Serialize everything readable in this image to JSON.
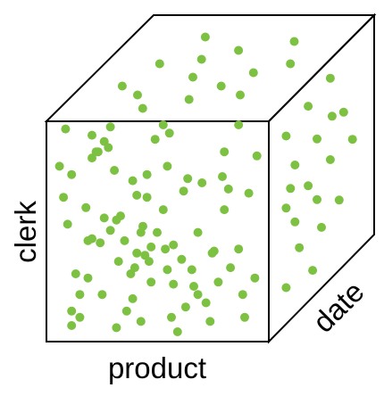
{
  "diagram": {
    "axes": {
      "x_label": "product",
      "y_label": "clerk",
      "z_label": "date"
    },
    "style": {
      "edge_color": "#000000",
      "dot_color": "#7dc142"
    },
    "points": [
      {
        "a": 0.05,
        "b": 0.02
      },
      {
        "a": 0.27,
        "b": 0.01
      },
      {
        "a": 0.53,
        "b": 0.0
      },
      {
        "a": 0.9,
        "b": 0.0
      },
      {
        "a": 0.18,
        "b": 0.05
      },
      {
        "a": 0.24,
        "b": 0.08
      },
      {
        "a": 0.26,
        "b": 0.11
      },
      {
        "a": 0.2,
        "b": 0.13
      },
      {
        "a": 0.02,
        "b": 0.2
      },
      {
        "a": 0.18,
        "b": 0.16
      },
      {
        "a": 0.08,
        "b": 0.24
      },
      {
        "a": 0.29,
        "b": 0.22
      },
      {
        "a": 0.38,
        "b": 0.27
      },
      {
        "a": 0.55,
        "b": 0.2
      },
      {
        "a": 0.65,
        "b": 0.26
      },
      {
        "a": 0.49,
        "b": 0.07
      },
      {
        "a": 0.45,
        "b": 0.35
      },
      {
        "a": 0.72,
        "b": 0.28
      },
      {
        "a": 0.85,
        "b": 0.31
      },
      {
        "a": 0.95,
        "b": 0.33
      },
      {
        "a": 0.15,
        "b": 0.4
      },
      {
        "a": 0.06,
        "b": 0.48
      },
      {
        "a": 0.24,
        "b": 0.45
      },
      {
        "a": 0.3,
        "b": 0.46
      },
      {
        "a": 0.22,
        "b": 0.57
      },
      {
        "a": 0.34,
        "b": 0.56
      },
      {
        "a": 0.4,
        "b": 0.62
      },
      {
        "a": 0.31,
        "b": 0.66
      },
      {
        "a": 0.5,
        "b": 0.52
      },
      {
        "a": 0.58,
        "b": 0.58
      },
      {
        "a": 0.62,
        "b": 0.65
      },
      {
        "a": 0.7,
        "b": 0.52
      },
      {
        "a": 0.78,
        "b": 0.61
      },
      {
        "a": 0.86,
        "b": 0.69
      },
      {
        "a": 0.98,
        "b": 0.74
      },
      {
        "a": 0.8,
        "b": 0.76
      },
      {
        "a": 0.1,
        "b": 0.72
      },
      {
        "a": 0.16,
        "b": 0.74
      },
      {
        "a": 0.12,
        "b": 0.82
      },
      {
        "a": 0.23,
        "b": 0.82
      },
      {
        "a": 0.38,
        "b": 0.84
      },
      {
        "a": 0.47,
        "b": 0.76
      },
      {
        "a": 0.55,
        "b": 0.7
      },
      {
        "a": 0.68,
        "b": 0.78
      },
      {
        "a": 0.74,
        "b": 0.86
      },
      {
        "a": 0.92,
        "b": 0.82
      },
      {
        "a": 0.42,
        "b": 0.95
      },
      {
        "a": 0.3,
        "b": 0.98
      },
      {
        "a": 0.57,
        "b": 0.93
      },
      {
        "a": 0.64,
        "b": 0.88
      },
      {
        "a": 0.12,
        "b": 0.93
      },
      {
        "a": 0.76,
        "b": 0.95
      },
      {
        "a": 0.6,
        "b": 1.0
      },
      {
        "a": 0.35,
        "b": 0.9
      },
      {
        "a": 0.21,
        "b": 0.13
      },
      {
        "a": 0.83,
        "b": 0.13
      },
      {
        "a": 0.56,
        "b": 0.04
      },
      {
        "a": 0.4,
        "b": 0.34
      },
      {
        "a": 0.63,
        "b": 0.32
      },
      {
        "a": 0.27,
        "b": 0.51
      },
      {
        "a": 0.18,
        "b": 0.55
      },
      {
        "a": 0.47,
        "b": 0.59
      },
      {
        "a": 0.53,
        "b": 0.41
      },
      {
        "a": 0.45,
        "b": 0.24
      },
      {
        "a": 0.43,
        "b": 0.49
      },
      {
        "a": 0.37,
        "b": 0.72
      },
      {
        "a": 0.54,
        "b": 0.6
      },
      {
        "a": 0.58,
        "b": 0.77
      },
      {
        "a": 0.9,
        "b": 0.6
      },
      {
        "a": 0.16,
        "b": 0.56
      },
      {
        "a": 0.39,
        "b": 0.69
      },
      {
        "a": 0.46,
        "b": 0.66
      },
      {
        "a": 0.44,
        "b": 0.63
      },
      {
        "a": 0.32,
        "b": 0.44
      },
      {
        "a": 0.7,
        "b": 0.82
      },
      {
        "a": 0.77,
        "b": 0.62
      },
      {
        "a": 0.82,
        "b": 0.25
      },
      {
        "a": 0.08,
        "b": 0.9
      },
      {
        "a": 0.67,
        "b": 0.7
      },
      {
        "a": 0.93,
        "b": 0.93
      },
      {
        "a": 0.08,
        "b": 0.97
      },
      {
        "a": 0.99,
        "b": 0.15
      },
      {
        "a": 0.83,
        "b": 0.41
      },
      {
        "a": 0.42,
        "b": 0.52
      },
      {
        "a": 0.04,
        "b": 0.35
      }
    ],
    "side_points": [
      {
        "u": 0.1,
        "v": 0.1
      },
      {
        "u": 0.35,
        "v": 0.06
      },
      {
        "u": 0.6,
        "v": 0.03
      },
      {
        "u": 0.2,
        "v": 0.3
      },
      {
        "u": 0.45,
        "v": 0.28
      },
      {
        "u": 0.75,
        "v": 0.28
      },
      {
        "u": 0.1,
        "v": 0.48
      },
      {
        "u": 0.35,
        "v": 0.48
      },
      {
        "u": 0.6,
        "v": 0.46
      },
      {
        "u": 0.85,
        "v": 0.47
      },
      {
        "u": 0.2,
        "v": 0.6
      },
      {
        "u": 0.45,
        "v": 0.6
      },
      {
        "u": 0.25,
        "v": 0.76
      },
      {
        "u": 0.5,
        "v": 0.77
      },
      {
        "u": 0.1,
        "v": 0.9
      },
      {
        "u": 0.4,
        "v": 0.95
      },
      {
        "u": 0.7,
        "v": 0.72
      },
      {
        "u": 0.15,
        "v": 0.4
      },
      {
        "u": 0.62,
        "v": 0.24
      }
    ],
    "top_points": [
      {
        "s": 0.3,
        "t": 0.15
      },
      {
        "s": 0.55,
        "t": 0.3
      },
      {
        "s": 0.8,
        "t": 0.2
      },
      {
        "s": 0.2,
        "t": 0.45
      },
      {
        "s": 0.45,
        "t": 0.6
      },
      {
        "s": 0.75,
        "t": 0.55
      },
      {
        "s": 0.25,
        "t": 0.8
      },
      {
        "s": 0.55,
        "t": 0.85
      },
      {
        "s": 0.8,
        "t": 0.8
      },
      {
        "s": 0.4,
        "t": 0.4
      },
      {
        "s": 0.65,
        "t": 0.7
      },
      {
        "s": 0.12,
        "t": 0.7
      },
      {
        "s": 0.9,
        "t": 0.45
      },
      {
        "s": 0.35,
        "t": 0.95
      }
    ]
  }
}
